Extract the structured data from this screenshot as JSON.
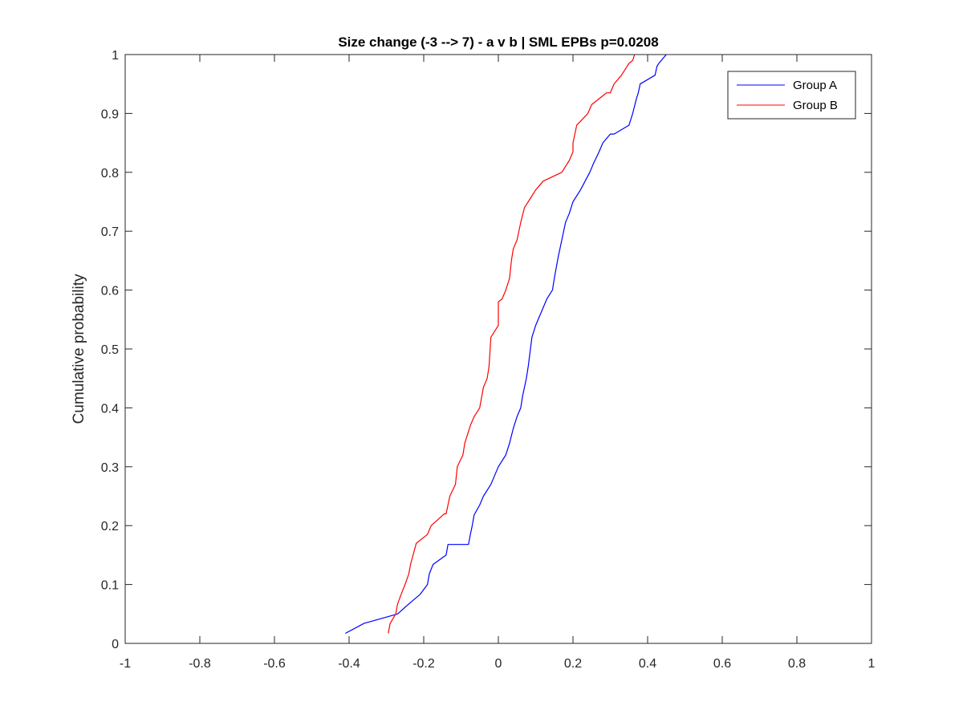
{
  "chart_data": {
    "type": "line",
    "title": "Size change (-3 --> 7) - a v b | SML EPBs p=0.0208",
    "xlabel": "",
    "ylabel": "Cumulative probability",
    "xlim": [
      -1,
      1
    ],
    "ylim": [
      0,
      1
    ],
    "x_ticks": [
      -1,
      -0.8,
      -0.6,
      -0.4,
      -0.2,
      0,
      0.2,
      0.4,
      0.6,
      0.8,
      1
    ],
    "x_tick_labels": [
      "-1",
      "-0.8",
      "-0.6",
      "-0.4",
      "-0.2",
      "0",
      "0.2",
      "0.4",
      "0.6",
      "0.8",
      "1"
    ],
    "y_ticks": [
      0,
      0.1,
      0.2,
      0.3,
      0.4,
      0.5,
      0.6,
      0.7,
      0.8,
      0.9,
      1
    ],
    "y_tick_labels": [
      "0",
      "0.1",
      "0.2",
      "0.3",
      "0.4",
      "0.5",
      "0.6",
      "0.7",
      "0.8",
      "0.9",
      "1"
    ],
    "grid": false,
    "legend_position": "top-right",
    "series": [
      {
        "name": "Group A",
        "color": "#0000ff",
        "x": [
          -0.41,
          -0.36,
          -0.27,
          -0.24,
          -0.21,
          -0.19,
          -0.185,
          -0.175,
          -0.14,
          -0.135,
          -0.08,
          -0.075,
          -0.07,
          -0.065,
          -0.05,
          -0.04,
          -0.02,
          -0.01,
          0.0,
          0.02,
          0.03,
          0.04,
          0.05,
          0.06,
          0.065,
          0.075,
          0.08,
          0.09,
          0.1,
          0.12,
          0.13,
          0.145,
          0.15,
          0.16,
          0.17,
          0.175,
          0.18,
          0.19,
          0.2,
          0.22,
          0.245,
          0.255,
          0.27,
          0.28,
          0.3,
          0.31,
          0.35,
          0.36,
          0.37,
          0.375,
          0.38,
          0.42,
          0.425,
          0.43,
          0.45
        ],
        "y": [
          0.017,
          0.034,
          0.05,
          0.067,
          0.083,
          0.1,
          0.118,
          0.134,
          0.15,
          0.168,
          0.168,
          0.185,
          0.2,
          0.218,
          0.235,
          0.25,
          0.27,
          0.285,
          0.3,
          0.32,
          0.34,
          0.365,
          0.385,
          0.4,
          0.42,
          0.45,
          0.47,
          0.52,
          0.54,
          0.57,
          0.585,
          0.6,
          0.62,
          0.655,
          0.685,
          0.7,
          0.715,
          0.73,
          0.75,
          0.77,
          0.8,
          0.815,
          0.835,
          0.85,
          0.865,
          0.865,
          0.88,
          0.9,
          0.925,
          0.935,
          0.95,
          0.965,
          0.98,
          0.985,
          1.0
        ]
      },
      {
        "name": "Group B",
        "color": "#ff0000",
        "x": [
          -0.295,
          -0.29,
          -0.275,
          -0.27,
          -0.26,
          -0.25,
          -0.24,
          -0.235,
          -0.22,
          -0.19,
          -0.18,
          -0.145,
          -0.14,
          -0.13,
          -0.115,
          -0.11,
          -0.095,
          -0.09,
          -0.075,
          -0.065,
          -0.05,
          -0.04,
          -0.03,
          -0.025,
          -0.02,
          0.0,
          0.0,
          0.01,
          0.02,
          0.03,
          0.035,
          0.04,
          0.05,
          0.06,
          0.07,
          0.08,
          0.1,
          0.12,
          0.17,
          0.19,
          0.19,
          0.2,
          0.2,
          0.21,
          0.24,
          0.25,
          0.26,
          0.28,
          0.29,
          0.3,
          0.31,
          0.33,
          0.35,
          0.36,
          0.365
        ],
        "y": [
          0.017,
          0.034,
          0.05,
          0.067,
          0.084,
          0.1,
          0.118,
          0.135,
          0.17,
          0.185,
          0.2,
          0.22,
          0.22,
          0.25,
          0.27,
          0.3,
          0.32,
          0.34,
          0.37,
          0.385,
          0.4,
          0.435,
          0.45,
          0.47,
          0.52,
          0.54,
          0.58,
          0.585,
          0.6,
          0.62,
          0.65,
          0.67,
          0.685,
          0.715,
          0.74,
          0.75,
          0.77,
          0.785,
          0.8,
          0.82,
          0.82,
          0.835,
          0.85,
          0.88,
          0.9,
          0.915,
          0.92,
          0.93,
          0.935,
          0.935,
          0.95,
          0.965,
          0.985,
          0.99,
          1.0
        ]
      }
    ]
  }
}
